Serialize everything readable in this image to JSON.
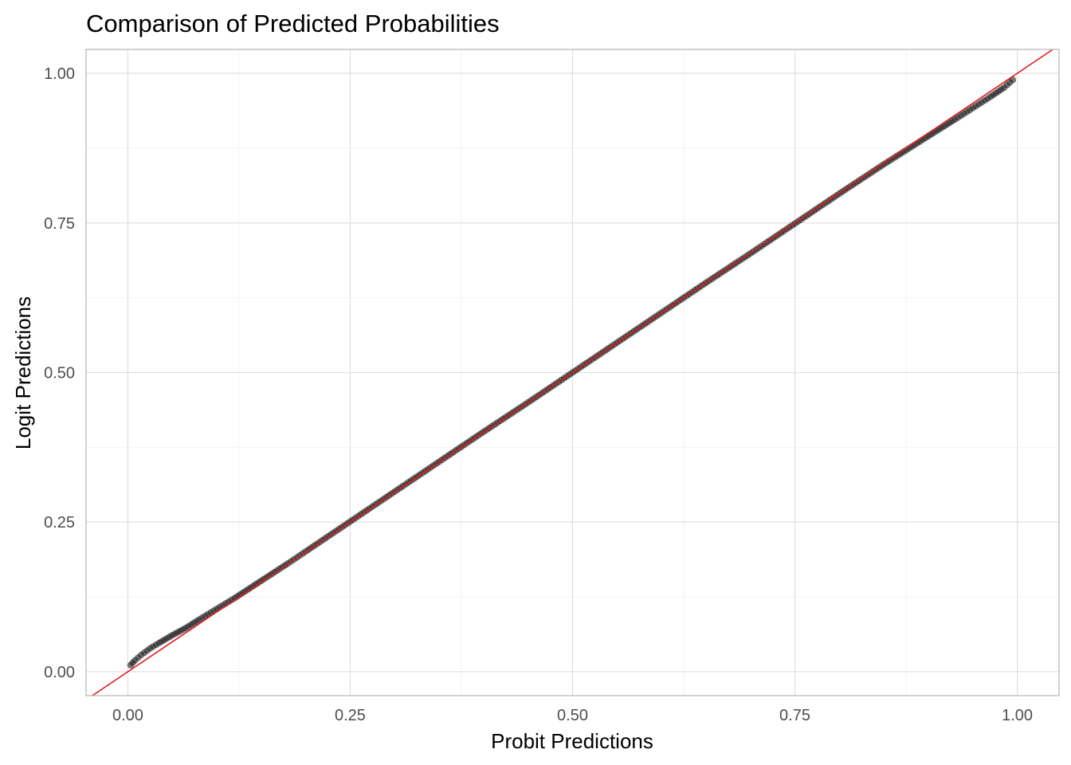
{
  "chart_data": {
    "type": "scatter",
    "title": "Comparison of Predicted Probabilities",
    "xlabel": "Probit Predictions",
    "ylabel": "Logit Predictions",
    "xlim": [
      -0.047,
      1.047
    ],
    "ylim": [
      -0.04,
      1.04
    ],
    "xticks": [
      0,
      0.25,
      0.5,
      0.75,
      1.0
    ],
    "xtick_labels": [
      "0.00",
      "0.25",
      "0.50",
      "0.75",
      "1.00"
    ],
    "yticks": [
      0,
      0.25,
      0.5,
      0.75,
      1.0
    ],
    "ytick_labels": [
      "0.00",
      "0.25",
      "0.50",
      "0.75",
      "1.00"
    ],
    "grid": true,
    "reference_line": {
      "intercept": 0,
      "slope": 1,
      "color": "#e41a1c"
    },
    "point_color": "#1a1a1a",
    "point_alpha": 0.6,
    "points": {
      "x": [
        0.003,
        0.008,
        0.015,
        0.025,
        0.035,
        0.05,
        0.065,
        0.08,
        0.1,
        0.12,
        0.15,
        0.18,
        0.2,
        0.25,
        0.3,
        0.35,
        0.4,
        0.45,
        0.5,
        0.55,
        0.6,
        0.65,
        0.7,
        0.75,
        0.8,
        0.85,
        0.9,
        0.93,
        0.95,
        0.97,
        0.985,
        0.995
      ],
      "y": [
        0.011,
        0.019,
        0.028,
        0.039,
        0.048,
        0.061,
        0.073,
        0.087,
        0.105,
        0.123,
        0.152,
        0.181,
        0.201,
        0.251,
        0.301,
        0.351,
        0.401,
        0.45,
        0.5,
        0.55,
        0.6,
        0.65,
        0.699,
        0.749,
        0.799,
        0.848,
        0.895,
        0.923,
        0.942,
        0.961,
        0.976,
        0.989
      ]
    }
  }
}
